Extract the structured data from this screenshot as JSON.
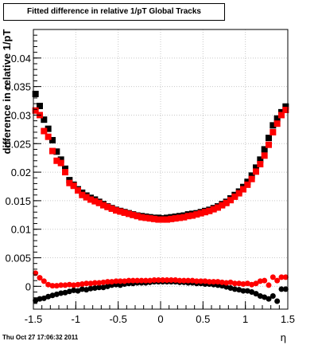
{
  "header": {
    "title": "Fitted difference in relative 1/pT  Global Tracks"
  },
  "footer": {
    "timestamp": "Thu Oct 27 17:06:32 2011"
  },
  "chart_data": {
    "type": "scatter",
    "title": "Fitted difference in relative 1/pT  Global Tracks",
    "xlabel": "η",
    "ylabel": "difference in relative 1/pT",
    "xlim": [
      -1.5,
      1.5
    ],
    "ylim": [
      -0.004,
      0.045
    ],
    "grid": true,
    "x_ticks": [
      -1.5,
      -1,
      -0.5,
      0,
      0.5,
      1,
      1.5
    ],
    "x_tick_labels": [
      "-1.5",
      "-1",
      "-0.5",
      "0",
      "0.5",
      "1",
      "1.5"
    ],
    "y_ticks": [
      0,
      0.005,
      0.01,
      0.015,
      0.02,
      0.025,
      0.03,
      0.035,
      0.04
    ],
    "y_tick_labels": [
      "0",
      "0.005",
      "0.01",
      "0.015",
      "0.02",
      "0.025",
      "0.03",
      "0.035",
      "0.04"
    ],
    "colors": {
      "series_black": "#000000",
      "series_red": "#ff0000",
      "grid": "#c8c8c8"
    },
    "series": [
      {
        "color": "#000000",
        "x": [
          -1.475,
          -1.425,
          -1.375,
          -1.325,
          -1.275,
          -1.225,
          -1.175,
          -1.125,
          -1.075,
          -1.025,
          -0.975,
          -0.925,
          -0.875,
          -0.825,
          -0.775,
          -0.725,
          -0.675,
          -0.625,
          -0.575,
          -0.525,
          -0.475,
          -0.425,
          -0.375,
          -0.325,
          -0.275,
          -0.225,
          -0.175,
          -0.125,
          -0.075,
          -0.025,
          0.025,
          0.075,
          0.125,
          0.175,
          0.225,
          0.275,
          0.325,
          0.375,
          0.425,
          0.475,
          0.525,
          0.575,
          0.625,
          0.675,
          0.725,
          0.775,
          0.825,
          0.875,
          0.925,
          0.975,
          1.025,
          1.075,
          1.125,
          1.175,
          1.225,
          1.275,
          1.325,
          1.375,
          1.425,
          1.475
        ],
        "y": [
          0.0337,
          0.0316,
          0.0292,
          0.0276,
          0.0256,
          0.0236,
          0.0222,
          0.0206,
          0.0186,
          0.0178,
          0.017,
          0.0164,
          0.0159,
          0.0155,
          0.0152,
          0.0148,
          0.0144,
          0.014,
          0.0137,
          0.0134,
          0.0132,
          0.013,
          0.0128,
          0.0126,
          0.0124,
          0.0123,
          0.0122,
          0.0121,
          0.012,
          0.012,
          0.0119,
          0.012,
          0.0121,
          0.0122,
          0.0123,
          0.0124,
          0.0126,
          0.0127,
          0.0128,
          0.013,
          0.0132,
          0.0134,
          0.0137,
          0.014,
          0.0144,
          0.0148,
          0.0154,
          0.016,
          0.0166,
          0.0174,
          0.0183,
          0.0194,
          0.0208,
          0.0222,
          0.024,
          0.026,
          0.0282,
          0.0294,
          0.0305,
          0.0315
        ],
        "y_lower": [
          -0.0025,
          -0.0022,
          -0.0021,
          -0.0018,
          -0.0016,
          -0.0014,
          -0.0012,
          -0.0011,
          -0.0009,
          -0.0007,
          -0.0008,
          -0.0005,
          -0.0006,
          -0.0004,
          -0.0003,
          -0.0002,
          -0.0002,
          0.0,
          0.0002,
          0.0003,
          0.0002,
          0.0004,
          0.0005,
          0.0005,
          0.0006,
          0.0006,
          0.0006,
          0.0007,
          0.0008,
          0.0008,
          0.0008,
          0.0008,
          0.0008,
          0.0008,
          0.0007,
          0.0007,
          0.0006,
          0.0006,
          0.0005,
          0.0005,
          0.0004,
          0.0004,
          0.0003,
          0.0002,
          0.0001,
          -0.0001,
          -0.0003,
          -0.0005,
          -0.0006,
          -0.0008,
          -0.0008,
          -0.001,
          -0.0013,
          -0.0017,
          -0.0019,
          -0.0022,
          -0.0017,
          -0.0026,
          -0.0005,
          -0.0005
        ]
      },
      {
        "color": "#ff0000",
        "x": [
          -1.475,
          -1.425,
          -1.375,
          -1.325,
          -1.275,
          -1.225,
          -1.175,
          -1.125,
          -1.075,
          -1.025,
          -0.975,
          -0.925,
          -0.875,
          -0.825,
          -0.775,
          -0.725,
          -0.675,
          -0.625,
          -0.575,
          -0.525,
          -0.475,
          -0.425,
          -0.375,
          -0.325,
          -0.275,
          -0.225,
          -0.175,
          -0.125,
          -0.075,
          -0.025,
          0.025,
          0.075,
          0.125,
          0.175,
          0.225,
          0.275,
          0.325,
          0.375,
          0.425,
          0.475,
          0.525,
          0.575,
          0.625,
          0.675,
          0.725,
          0.775,
          0.825,
          0.875,
          0.925,
          0.975,
          1.025,
          1.075,
          1.125,
          1.175,
          1.225,
          1.275,
          1.325,
          1.375,
          1.425,
          1.475
        ],
        "y": [
          0.0308,
          0.03,
          0.0272,
          0.0262,
          0.0237,
          0.022,
          0.0216,
          0.02,
          0.0181,
          0.0176,
          0.0168,
          0.016,
          0.0156,
          0.0152,
          0.0149,
          0.0146,
          0.0142,
          0.0139,
          0.0136,
          0.0133,
          0.0131,
          0.0129,
          0.0127,
          0.0125,
          0.0123,
          0.0121,
          0.012,
          0.0119,
          0.0118,
          0.0117,
          0.0117,
          0.0117,
          0.0118,
          0.0119,
          0.012,
          0.0121,
          0.0123,
          0.0124,
          0.0126,
          0.0128,
          0.013,
          0.0132,
          0.0135,
          0.0138,
          0.0142,
          0.0146,
          0.0151,
          0.0157,
          0.0163,
          0.017,
          0.0178,
          0.0188,
          0.0201,
          0.0214,
          0.0229,
          0.0248,
          0.027,
          0.0285,
          0.03,
          0.0309
        ],
        "y_lower": [
          0.0023,
          0.0015,
          0.0009,
          0.0003,
          0.0001,
          0.0001,
          0.0002,
          0.0002,
          0.0003,
          0.0002,
          0.0003,
          0.0004,
          0.0005,
          0.0005,
          0.0006,
          0.0006,
          0.0007,
          0.0008,
          0.0008,
          0.0009,
          0.0009,
          0.0009,
          0.001,
          0.001,
          0.001,
          0.001,
          0.001,
          0.001,
          0.0011,
          0.0011,
          0.0011,
          0.0011,
          0.0011,
          0.0011,
          0.001,
          0.001,
          0.001,
          0.001,
          0.0009,
          0.0009,
          0.0009,
          0.0008,
          0.0008,
          0.0008,
          0.0007,
          0.0006,
          0.0007,
          0.0005,
          0.0005,
          0.0004,
          0.0005,
          0.0003,
          0.0005,
          0.0009,
          0.001,
          0.0002,
          0.0016,
          0.001,
          0.0016,
          0.0016
        ]
      }
    ]
  }
}
